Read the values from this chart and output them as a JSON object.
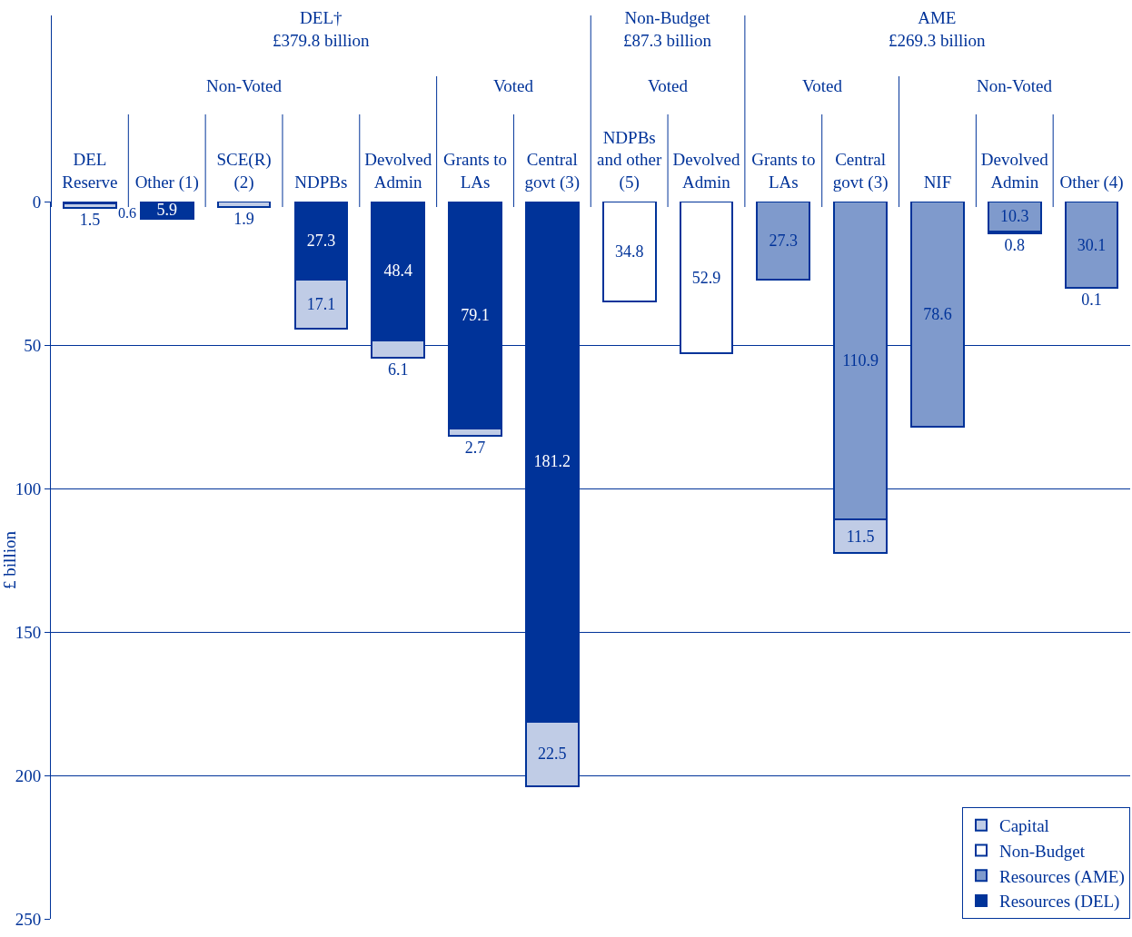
{
  "chart_data": {
    "type": "bar",
    "stacked": true,
    "ylabel": "£ billion",
    "categories": [
      "DEL\nReserve",
      "Other (1)",
      "SCE(R)\n(2)",
      "NDPBs",
      "Devolved\nAdmin",
      "Grants to\nLAs",
      "Central\ngovt (3)",
      "NDPBs\nand other\n(5)",
      "Devolved\nAdmin",
      "Grants to\nLAs",
      "Central\ngovt (3)",
      "NIF",
      "Devolved\nAdmin",
      "Other (4)"
    ],
    "series": [
      {
        "name": "Resources (DEL)",
        "color": "#003399",
        "values": [
          0.6,
          5.9,
          null,
          27.3,
          48.4,
          79.1,
          181.2,
          null,
          null,
          null,
          null,
          null,
          null,
          null
        ]
      },
      {
        "name": "Resources (AME)",
        "color": "#7f9acc",
        "values": [
          null,
          null,
          null,
          null,
          null,
          null,
          null,
          null,
          null,
          27.3,
          110.9,
          78.6,
          10.3,
          30.1
        ]
      },
      {
        "name": "Non-Budget",
        "color": "#ffffff",
        "values": [
          null,
          null,
          null,
          null,
          null,
          null,
          null,
          34.8,
          52.9,
          null,
          null,
          null,
          null,
          null
        ]
      },
      {
        "name": "Capital",
        "color": "#c0cce6",
        "values": [
          1.5,
          null,
          1.9,
          17.1,
          6.1,
          2.7,
          22.5,
          null,
          null,
          null,
          11.5,
          null,
          0.8,
          0.1
        ]
      }
    ],
    "ylim": [
      250,
      0
    ],
    "yticks": [
      0,
      50,
      100,
      150,
      200,
      250
    ],
    "grid": "y",
    "legend": "bottom right",
    "data_labels": true,
    "annotations": [
      "DEL†\n£379.8 billion",
      "Non-Budget\n£87.3 billion",
      "AME\n£269.3 billion",
      "Non-Voted",
      "Voted",
      "Voted",
      "Voted",
      "Non-Voted"
    ]
  }
}
